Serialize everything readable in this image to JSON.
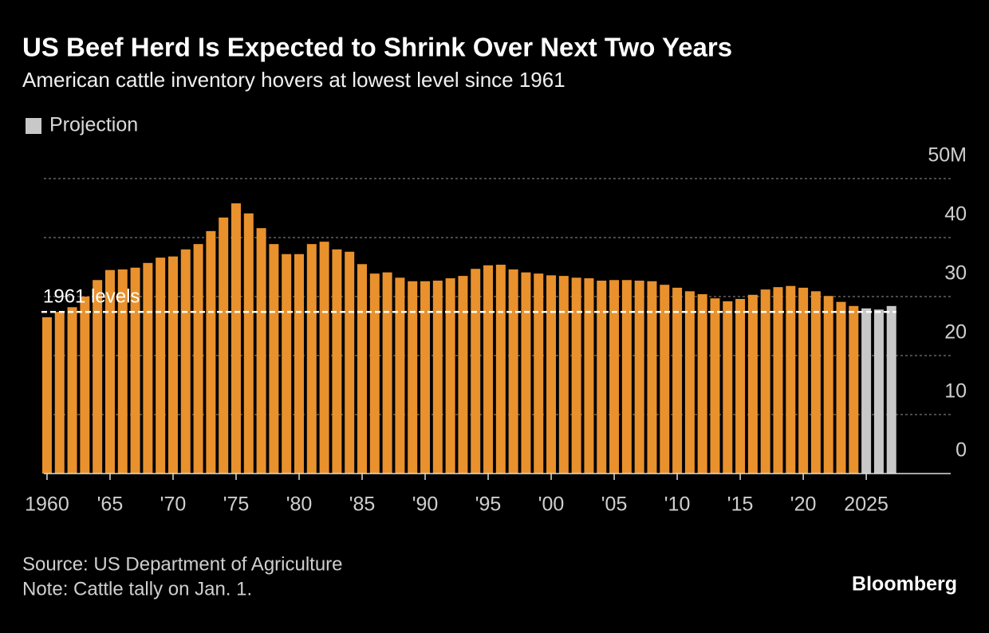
{
  "chart_data": {
    "type": "bar",
    "title": "US Beef Herd Is Expected to Shrink Over Next Two Years",
    "subtitle": "American cattle inventory hovers at lowest level since 1961",
    "series": [
      {
        "color": "#e8912d",
        "x": [
          1960,
          1961,
          1962,
          1963,
          1964,
          1965,
          1966,
          1967,
          1968,
          1969,
          1970,
          1971,
          1972,
          1973,
          1974,
          1975,
          1976,
          1977,
          1978,
          1979,
          1980,
          1981,
          1982,
          1983,
          1984,
          1985,
          1986,
          1987,
          1988,
          1989,
          1990,
          1991,
          1992,
          1993,
          1994,
          1995,
          1996,
          1997,
          1998,
          1999,
          2000,
          2001,
          2002,
          2003,
          2004,
          2005,
          2006,
          2007,
          2008,
          2009,
          2010,
          2011,
          2012,
          2013,
          2014,
          2015,
          2016,
          2017,
          2018,
          2019,
          2020,
          2021,
          2022,
          2023,
          2024
        ],
        "values": [
          26.5,
          27.4,
          28.2,
          30.0,
          32.8,
          34.5,
          34.6,
          34.9,
          35.7,
          36.6,
          36.8,
          38.0,
          38.9,
          41.1,
          43.4,
          45.8,
          44.1,
          41.6,
          38.9,
          37.2,
          37.2,
          38.9,
          39.3,
          38.0,
          37.6,
          35.5,
          33.9,
          34.1,
          33.2,
          32.6,
          32.6,
          32.7,
          33.1,
          33.5,
          34.7,
          35.3,
          35.4,
          34.6,
          34.1,
          33.9,
          33.6,
          33.5,
          33.2,
          33.1,
          32.7,
          32.8,
          32.8,
          32.7,
          32.6,
          32.0,
          31.5,
          30.9,
          30.4,
          29.7,
          29.2,
          29.6,
          30.3,
          31.2,
          31.6,
          31.8,
          31.5,
          30.9,
          30.1,
          29.1,
          28.4
        ]
      },
      {
        "name": "Projection",
        "color": "#c8c8c8",
        "x": [
          2025,
          2026,
          2027
        ],
        "values": [
          28.0,
          27.8,
          28.4
        ]
      }
    ],
    "reference": {
      "label": "1961 levels",
      "value": 27.4
    },
    "xlim": [
      1959.75,
      2031.7
    ],
    "xticks": [
      1960,
      {
        "value": 1965,
        "label": "'65"
      },
      {
        "value": 1970,
        "label": "'70"
      },
      {
        "value": 1975,
        "label": "'75"
      },
      {
        "value": 1980,
        "label": "'80"
      },
      {
        "value": 1985,
        "label": "'85"
      },
      {
        "value": 1990,
        "label": "'90"
      },
      {
        "value": 1995,
        "label": "'95"
      },
      {
        "value": 2000,
        "label": "'00"
      },
      {
        "value": 2005,
        "label": "'05"
      },
      {
        "value": 2010,
        "label": "'10"
      },
      {
        "value": 2015,
        "label": "'15"
      },
      {
        "value": 2020,
        "label": "'20"
      },
      2025
    ],
    "ylim": [
      0,
      50
    ],
    "yticks": [
      0,
      10,
      20,
      30,
      40,
      {
        "value": 50,
        "label": "50M"
      }
    ],
    "grid": true,
    "legend": "top-left",
    "source": "Source: US Department of Agriculture",
    "note": "Note: Cattle tally on Jan. 1.",
    "brand": "Bloomberg"
  }
}
